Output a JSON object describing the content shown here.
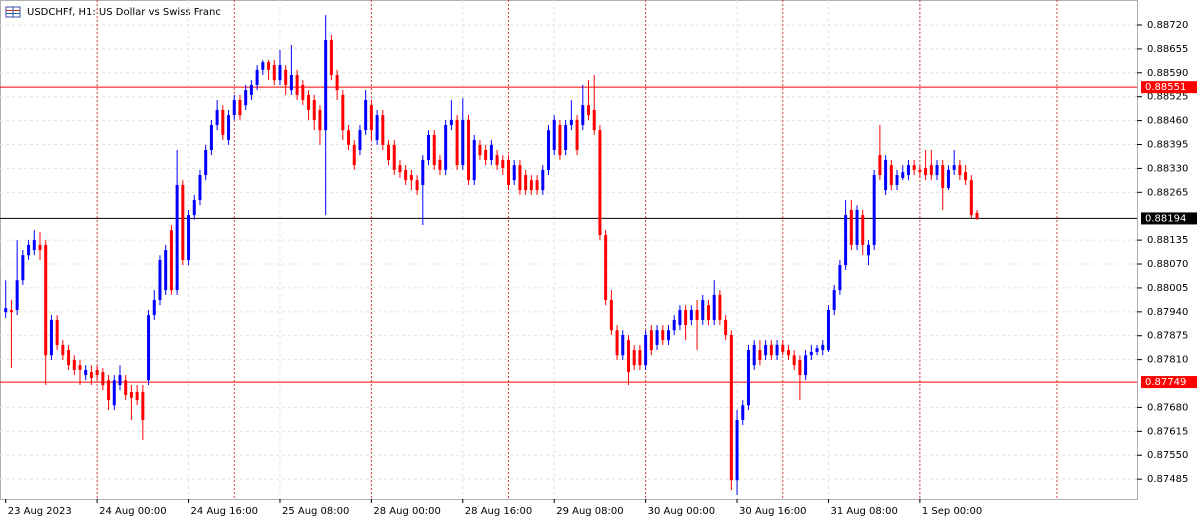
{
  "chart_data": {
    "type": "candlestick",
    "title": "USDCHFf, H1:  US Dollar vs Swiss Franc",
    "up_color": "#0000ff",
    "down_color": "#ff0000",
    "xlim": [
      -1,
      198
    ],
    "xticks": [
      {
        "value": 0,
        "label": "23 Aug 2023"
      },
      {
        "value": 16,
        "label": "24 Aug 00:00"
      },
      {
        "value": 32,
        "label": "24 Aug 16:00"
      },
      {
        "value": 48,
        "label": "25 Aug 08:00"
      },
      {
        "value": 64,
        "label": "28 Aug 00:00"
      },
      {
        "value": 80,
        "label": "28 Aug 16:00"
      },
      {
        "value": 96,
        "label": "29 Aug 08:00"
      },
      {
        "value": 112,
        "label": "30 Aug 00:00"
      },
      {
        "value": 128,
        "label": "30 Aug 16:00"
      },
      {
        "value": 144,
        "label": "31 Aug 08:00"
      },
      {
        "value": 160,
        "label": "1 Sep 00:00"
      }
    ],
    "xgrid": [
      16,
      40,
      64,
      88,
      112,
      136,
      160,
      184
    ],
    "ylim": [
      0.87431,
      0.88788
    ],
    "yticks": [
      {
        "value": 0.8872,
        "label": "0.88720"
      },
      0.88655,
      {
        "value": 0.8859,
        "label": "0.88590"
      },
      0.88525,
      {
        "value": 0.8846,
        "label": "0.88460"
      },
      0.88395,
      {
        "value": 0.8833,
        "label": "0.88330"
      },
      0.88265,
      0.88135,
      {
        "value": 0.8807,
        "label": "0.88070"
      },
      0.88005,
      {
        "value": 0.8794,
        "label": "0.87940"
      },
      0.87875,
      {
        "value": 0.8781,
        "label": "0.87810"
      },
      {
        "value": 0.8768,
        "label": "0.87680"
      },
      0.87615,
      {
        "value": 0.8755,
        "label": "0.87550"
      },
      0.87485
    ],
    "grid": true,
    "hlines": [
      {
        "value": 0.88551,
        "color": "#ff0000"
      },
      {
        "value": 0.88194,
        "color": "#000000"
      },
      {
        "value": 0.87749,
        "color": "#ff0000"
      }
    ],
    "open": [
      0.87939,
      0.87945,
      0.87945,
      0.88026,
      0.88094,
      0.88108,
      0.88122,
      0.88122,
      0.87822,
      0.87918,
      0.8785,
      0.87836,
      0.87809,
      0.87795,
      0.87768,
      0.87776,
      0.87782,
      0.87776,
      0.87754,
      0.87686,
      0.87741,
      0.87754,
      0.87722,
      0.87722,
      0.87722,
      0.87754,
      0.87931,
      0.87972,
      0.87999,
      0.88162,
      0.87999,
      0.88285,
      0.88081,
      0.88203,
      0.88244,
      0.88312,
      0.8838,
      0.88448,
      0.88489,
      0.88407,
      0.88475,
      0.88516,
      0.88502,
      0.8853,
      0.88557,
      0.88598,
      0.88619,
      0.88611,
      0.8857,
      0.88598,
      0.88543,
      0.88584,
      0.88557,
      0.8853,
      0.88516,
      0.88489,
      0.88434,
      0.88679,
      0.88584,
      0.8853,
      0.88434,
      0.88394,
      0.8838,
      0.88434,
      0.88502,
      0.88407,
      0.88475,
      0.88394,
      0.88394,
      0.88339,
      0.88326,
      0.88312,
      0.88298,
      0.88285,
      0.88353,
      0.88421,
      0.88353,
      0.88326,
      0.88448,
      0.88462,
      0.88339,
      0.88462,
      0.88298,
      0.88394,
      0.8838,
      0.88353,
      0.88366,
      0.88353,
      0.88353,
      0.88298,
      0.88339,
      0.88312,
      0.88298,
      0.88298,
      0.88271,
      0.88326,
      0.8838,
      0.88448,
      0.8838,
      0.88448,
      0.88462,
      0.88448,
      0.88502,
      0.88489,
      0.88434,
      0.88149,
      0.87972,
      0.8789,
      0.87822,
      0.87863,
      0.87836,
      0.87836,
      0.87795,
      0.8789,
      0.8785,
      0.8789,
      0.87863,
      0.8789,
      0.87904,
      0.87945,
      0.87918,
      0.87945,
      0.87918,
      0.87958,
      0.87918,
      0.87986,
      0.87918,
      0.87877,
      0.87482,
      0.87646,
      0.87686,
      0.87795,
      0.87836,
      0.87822,
      0.8785,
      0.87822,
      0.8785,
      0.87836,
      0.87822,
      0.87809,
      0.87768,
      0.87822,
      0.87831,
      0.87836,
      0.87836,
      0.87945,
      0.87999,
      0.88067,
      0.88217,
      0.88122,
      0.88203,
      0.88094,
      0.88122,
      0.88366,
      0.88271,
      0.88339,
      0.88285,
      0.88304,
      0.88312,
      0.88339,
      0.88326,
      0.88331,
      0.88339,
      0.88312,
      0.88339,
      0.88277,
      0.88326,
      0.88339,
      0.8832,
      0.88298,
      0.88209
    ],
    "high": [
      0.88026,
      0.87972,
      0.88135,
      0.88108,
      0.88135,
      0.88162,
      0.88157,
      0.88135,
      0.87931,
      0.87931,
      0.87863,
      0.8785,
      0.87822,
      0.87809,
      0.87795,
      0.87795,
      0.87795,
      0.87787,
      0.87768,
      0.87768,
      0.87795,
      0.87768,
      0.87741,
      0.87741,
      0.87741,
      0.87945,
      0.87999,
      0.88094,
      0.88122,
      0.88176,
      0.8838,
      0.88298,
      0.88217,
      0.88258,
      0.88326,
      0.88394,
      0.88462,
      0.88516,
      0.88502,
      0.88489,
      0.8853,
      0.8853,
      0.88557,
      0.8857,
      0.88611,
      0.88625,
      0.88625,
      0.88625,
      0.88652,
      0.88611,
      0.88666,
      0.88598,
      0.8857,
      0.88543,
      0.8853,
      0.88502,
      0.88747,
      0.88693,
      0.88598,
      0.88543,
      0.88448,
      0.88407,
      0.88448,
      0.88543,
      0.88516,
      0.88489,
      0.88489,
      0.88407,
      0.88407,
      0.88353,
      0.88339,
      0.88326,
      0.88312,
      0.88366,
      0.88434,
      0.88434,
      0.88366,
      0.88462,
      0.88516,
      0.88475,
      0.88521,
      0.88475,
      0.88421,
      0.88407,
      0.88394,
      0.88407,
      0.8838,
      0.88366,
      0.88366,
      0.88353,
      0.88353,
      0.88326,
      0.88312,
      0.88312,
      0.88339,
      0.88448,
      0.88475,
      0.88462,
      0.88462,
      0.88516,
      0.88475,
      0.88557,
      0.8857,
      0.88584,
      0.88448,
      0.88162,
      0.87999,
      0.87904,
      0.8789,
      0.87877,
      0.8785,
      0.8785,
      0.8789,
      0.87904,
      0.87904,
      0.87904,
      0.87904,
      0.87931,
      0.87958,
      0.87958,
      0.87958,
      0.87972,
      0.87986,
      0.87972,
      0.88026,
      0.87999,
      0.87931,
      0.8789,
      0.87673,
      0.877,
      0.8785,
      0.87863,
      0.87863,
      0.87863,
      0.87863,
      0.87863,
      0.87863,
      0.8785,
      0.87836,
      0.87822,
      0.87836,
      0.8785,
      0.8785,
      0.87863,
      0.87958,
      0.88013,
      0.88081,
      0.88244,
      0.88244,
      0.8823,
      0.88217,
      0.88135,
      0.88326,
      0.88448,
      0.88366,
      0.88353,
      0.88326,
      0.88339,
      0.88353,
      0.88353,
      0.88339,
      0.8838,
      0.8838,
      0.88353,
      0.88353,
      0.88339,
      0.8838,
      0.88353,
      0.88339,
      0.88312,
      0.88217
    ],
    "low": [
      0.87923,
      0.87787,
      0.87931,
      0.88013,
      0.88081,
      0.88094,
      0.88081,
      0.87741,
      0.87809,
      0.87836,
      0.87809,
      0.87782,
      0.87768,
      0.87741,
      0.87754,
      0.87741,
      0.87754,
      0.87727,
      0.87673,
      0.87673,
      0.87727,
      0.877,
      0.87646,
      0.87686,
      0.87591,
      0.87741,
      0.87918,
      0.87958,
      0.87986,
      0.87986,
      0.87986,
      0.88067,
      0.88067,
      0.8819,
      0.8823,
      0.88298,
      0.88366,
      0.88434,
      0.88407,
      0.88394,
      0.88462,
      0.88462,
      0.88489,
      0.88516,
      0.88543,
      0.88584,
      0.8857,
      0.88557,
      0.88557,
      0.8853,
      0.8853,
      0.88516,
      0.88502,
      0.88462,
      0.88434,
      0.88394,
      0.88203,
      0.8857,
      0.88516,
      0.88407,
      0.8838,
      0.88326,
      0.88366,
      0.88421,
      0.88407,
      0.88394,
      0.8838,
      0.88339,
      0.88312,
      0.88304,
      0.88285,
      0.88271,
      0.88258,
      0.88176,
      0.88339,
      0.88326,
      0.88312,
      0.88312,
      0.88434,
      0.88326,
      0.88326,
      0.88285,
      0.88285,
      0.88353,
      0.88339,
      0.88339,
      0.88326,
      0.88312,
      0.88271,
      0.88285,
      0.88258,
      0.88258,
      0.88258,
      0.88258,
      0.88258,
      0.88312,
      0.88366,
      0.88353,
      0.88366,
      0.88434,
      0.88366,
      0.88434,
      0.88462,
      0.88421,
      0.88135,
      0.87958,
      0.87877,
      0.87809,
      0.87809,
      0.87741,
      0.87782,
      0.87782,
      0.87782,
      0.87822,
      0.87836,
      0.8785,
      0.8785,
      0.87877,
      0.8789,
      0.87863,
      0.87904,
      0.87836,
      0.87904,
      0.87904,
      0.87904,
      0.87904,
      0.87863,
      0.87455,
      0.87442,
      0.87632,
      0.87673,
      0.87782,
      0.87795,
      0.87809,
      0.87809,
      0.87809,
      0.87822,
      0.87809,
      0.87782,
      0.877,
      0.87754,
      0.87809,
      0.87822,
      0.87822,
      0.87831,
      0.87931,
      0.87986,
      0.88054,
      0.88108,
      0.88108,
      0.88094,
      0.88067,
      0.88108,
      0.88298,
      0.88258,
      0.88271,
      0.88271,
      0.88298,
      0.88298,
      0.88312,
      0.88304,
      0.88298,
      0.88298,
      0.88298,
      0.88217,
      0.88271,
      0.88312,
      0.88298,
      0.88285,
      0.88195,
      0.8819
    ],
    "close": [
      0.8795,
      0.87939,
      0.88026,
      0.88094,
      0.88122,
      0.88135,
      0.88108,
      0.87822,
      0.87918,
      0.8785,
      0.87822,
      0.87795,
      0.87782,
      0.87782,
      0.87782,
      0.8776,
      0.87768,
      0.87741,
      0.877,
      0.87754,
      0.87768,
      0.87714,
      0.87706,
      0.877,
      0.87646,
      0.87931,
      0.87972,
      0.88081,
      0.88108,
      0.87999,
      0.88285,
      0.88081,
      0.88203,
      0.88244,
      0.88312,
      0.8838,
      0.88448,
      0.88489,
      0.88421,
      0.88475,
      0.88516,
      0.88475,
      0.88543,
      0.88557,
      0.88598,
      0.88619,
      0.88598,
      0.8857,
      0.88611,
      0.88557,
      0.88584,
      0.8853,
      0.88516,
      0.88489,
      0.88462,
      0.88434,
      0.88679,
      0.88584,
      0.88543,
      0.88434,
      0.88394,
      0.88339,
      0.88434,
      0.88516,
      0.88434,
      0.88475,
      0.88394,
      0.88353,
      0.88326,
      0.8832,
      0.88298,
      0.88298,
      0.88271,
      0.88353,
      0.88421,
      0.88339,
      0.88326,
      0.88448,
      0.88462,
      0.88339,
      0.88462,
      0.88298,
      0.88407,
      0.88366,
      0.88353,
      0.88394,
      0.88339,
      0.88331,
      0.88285,
      0.88339,
      0.88271,
      0.88271,
      0.88271,
      0.88271,
      0.88326,
      0.88434,
      0.88462,
      0.88366,
      0.88448,
      0.88462,
      0.8838,
      0.88502,
      0.88475,
      0.88434,
      0.88149,
      0.87972,
      0.8789,
      0.87822,
      0.87877,
      0.87776,
      0.87795,
      0.87795,
      0.87877,
      0.87836,
      0.8789,
      0.87863,
      0.8789,
      0.87918,
      0.87945,
      0.87904,
      0.87945,
      0.87918,
      0.87972,
      0.87918,
      0.87986,
      0.87918,
      0.87877,
      0.87482,
      0.87646,
      0.87686,
      0.87836,
      0.8785,
      0.87809,
      0.8785,
      0.87822,
      0.8785,
      0.87831,
      0.87822,
      0.87795,
      0.87768,
      0.87822,
      0.87831,
      0.87841,
      0.8785,
      0.87945,
      0.87999,
      0.88067,
      0.88203,
      0.88122,
      0.88217,
      0.88122,
      0.88122,
      0.88312,
      0.88312,
      0.88353,
      0.88285,
      0.88312,
      0.8832,
      0.88339,
      0.88326,
      0.8832,
      0.88312,
      0.88312,
      0.88339,
      0.88277,
      0.88326,
      0.88339,
      0.88312,
      0.88298,
      0.88203,
      0.88194
    ]
  }
}
